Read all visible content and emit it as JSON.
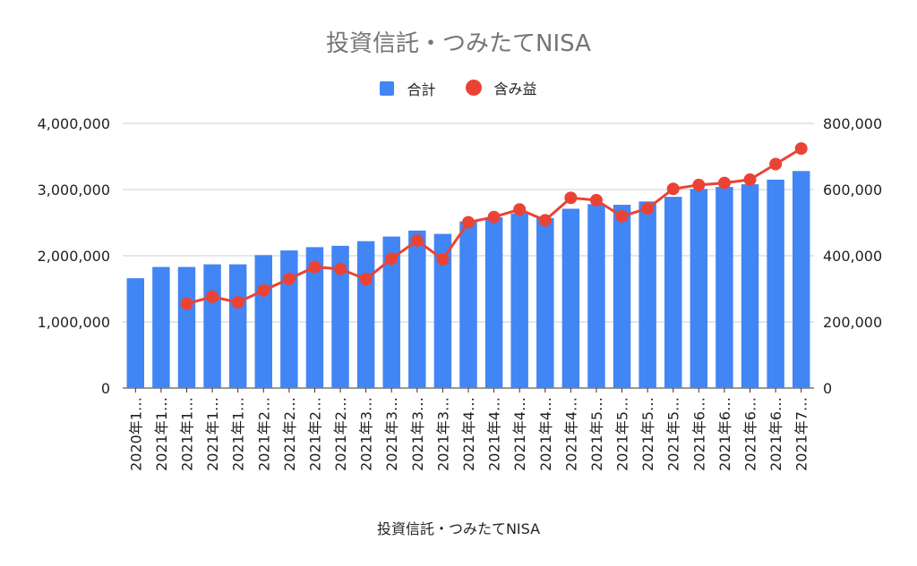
{
  "chart_data": {
    "type": "bar",
    "title": "投資信託・つみたてNISA",
    "xlabel": "投資信託・つみたてNISA",
    "ylabel": "",
    "ylim": [
      0,
      4000000
    ],
    "y2lim": [
      0,
      800000
    ],
    "y_ticks": [
      "0",
      "1,000,000",
      "2,000,000",
      "3,000,000",
      "4,000,000"
    ],
    "y2_ticks": [
      "0",
      "200,000",
      "400,000",
      "600,000",
      "800,000"
    ],
    "grid": true,
    "legend_position": "top",
    "categories": [
      "2020年1…",
      "2021年1…",
      "2021年1…",
      "2021年1…",
      "2021年1…",
      "2021年2…",
      "2021年2…",
      "2021年2…",
      "2021年2…",
      "2021年3…",
      "2021年3…",
      "2021年3…",
      "2021年3…",
      "2021年4…",
      "2021年4…",
      "2021年4…",
      "2021年4…",
      "2021年4…",
      "2021年5…",
      "2021年5…",
      "2021年5…",
      "2021年5…",
      "2021年6…",
      "2021年6…",
      "2021年6…",
      "2021年6…",
      "2021年7…"
    ],
    "series": [
      {
        "name": "合計",
        "kind": "bar",
        "axis": "left",
        "color": "#4285F4",
        "values": [
          1660000,
          1830000,
          1830000,
          1870000,
          1870000,
          2010000,
          2080000,
          2130000,
          2150000,
          2220000,
          2290000,
          2380000,
          2330000,
          2520000,
          2580000,
          2640000,
          2570000,
          2710000,
          2780000,
          2770000,
          2820000,
          2890000,
          3010000,
          3040000,
          3080000,
          3150000,
          3280000
        ]
      },
      {
        "name": "含み益",
        "kind": "line",
        "axis": "right",
        "color": "#EA4335",
        "values": [
          null,
          null,
          255000,
          276000,
          259000,
          295000,
          330000,
          366000,
          360000,
          329000,
          391000,
          446000,
          389000,
          501000,
          517000,
          540000,
          507000,
          575000,
          568000,
          519000,
          543000,
          602000,
          614000,
          620000,
          630000,
          677000,
          724000
        ]
      }
    ]
  }
}
